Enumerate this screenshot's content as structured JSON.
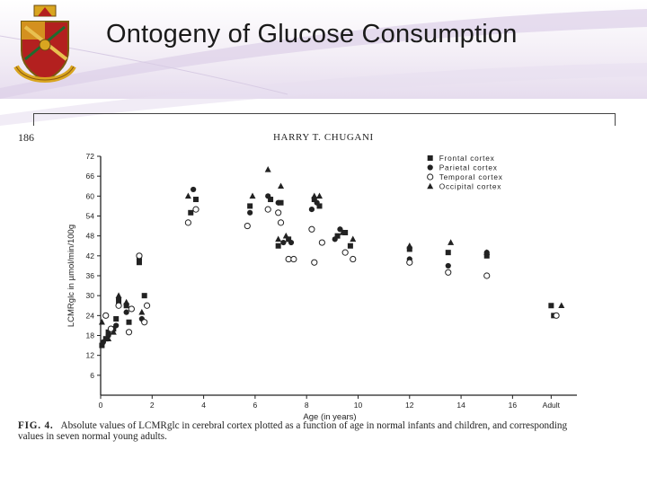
{
  "slide": {
    "title": "Ontogeny of Glucose Consumption",
    "colors": {
      "background_tint": "#e6dcee",
      "swoosh": "#cfc0dc",
      "crest_red": "#b3201f",
      "crest_gold": "#d9a520"
    }
  },
  "scan": {
    "page_number": "186",
    "running_head": "HARRY T. CHUGANI",
    "caption_fig": "FIG. 4.",
    "caption_line1": "Absolute values of LCMRglc in cerebral cortex plotted as a function of age in normal infants and children, and corresponding",
    "caption_line2": "values in seven normal young adults."
  },
  "chart_data": {
    "type": "scatter",
    "xlabel": "Age (in years)",
    "ylabel": "LCMRglc in µmol/min/100g",
    "xlim": [
      0,
      18.5
    ],
    "ylim": [
      0,
      72
    ],
    "xticks": [
      0,
      2,
      4,
      6,
      8,
      10,
      12,
      14,
      16
    ],
    "xtick_labels": [
      "0",
      "2",
      "4",
      "6",
      "8",
      "10",
      "12",
      "14",
      "16"
    ],
    "adult_label": "Adult",
    "adult_position": 17.5,
    "yticks": [
      6,
      12,
      18,
      24,
      30,
      36,
      42,
      48,
      54,
      60,
      66,
      72
    ],
    "ytick_labels": [
      "6",
      "12",
      "18",
      "24",
      "30",
      "36",
      "42",
      "48",
      "54",
      "60",
      "66",
      "72"
    ],
    "grid": false,
    "legend_position": "top-right",
    "series": [
      {
        "name": "Frontal cortex",
        "marker": "square",
        "points": [
          [
            0.05,
            15
          ],
          [
            0.2,
            17
          ],
          [
            0.3,
            19
          ],
          [
            0.5,
            20
          ],
          [
            0.6,
            23
          ],
          [
            0.7,
            28
          ],
          [
            1.1,
            22
          ],
          [
            1.0,
            27
          ],
          [
            1.5,
            40
          ],
          [
            1.7,
            30
          ],
          [
            3.5,
            55
          ],
          [
            3.7,
            59
          ],
          [
            5.8,
            57
          ],
          [
            6.6,
            59
          ],
          [
            7.0,
            58
          ],
          [
            6.9,
            45
          ],
          [
            7.3,
            47
          ],
          [
            8.3,
            59
          ],
          [
            8.5,
            57
          ],
          [
            9.2,
            48
          ],
          [
            9.5,
            49
          ],
          [
            9.7,
            45
          ],
          [
            12.0,
            44
          ],
          [
            13.5,
            43
          ],
          [
            15.0,
            42
          ],
          [
            17.5,
            27
          ],
          [
            17.6,
            24
          ]
        ]
      },
      {
        "name": "Parietal cortex",
        "marker": "circle-filled",
        "points": [
          [
            0.1,
            16
          ],
          [
            0.3,
            18
          ],
          [
            0.6,
            21
          ],
          [
            0.7,
            29
          ],
          [
            1.0,
            25
          ],
          [
            1.5,
            41
          ],
          [
            1.6,
            23
          ],
          [
            3.6,
            62
          ],
          [
            5.8,
            55
          ],
          [
            6.5,
            60
          ],
          [
            6.9,
            58
          ],
          [
            7.1,
            46
          ],
          [
            7.4,
            46
          ],
          [
            8.2,
            56
          ],
          [
            8.4,
            58
          ],
          [
            9.1,
            47
          ],
          [
            9.3,
            50
          ],
          [
            12.0,
            41
          ],
          [
            13.5,
            39
          ],
          [
            15.0,
            43
          ]
        ]
      },
      {
        "name": "Temporal cortex",
        "marker": "circle-open",
        "points": [
          [
            0.2,
            24
          ],
          [
            0.4,
            20
          ],
          [
            0.7,
            27
          ],
          [
            1.1,
            19
          ],
          [
            1.2,
            26
          ],
          [
            1.5,
            42
          ],
          [
            1.7,
            22
          ],
          [
            1.8,
            27
          ],
          [
            3.4,
            52
          ],
          [
            3.7,
            56
          ],
          [
            5.7,
            51
          ],
          [
            6.5,
            56
          ],
          [
            6.9,
            55
          ],
          [
            7.0,
            52
          ],
          [
            7.3,
            41
          ],
          [
            7.5,
            41
          ],
          [
            8.2,
            50
          ],
          [
            8.3,
            40
          ],
          [
            8.6,
            46
          ],
          [
            9.5,
            43
          ],
          [
            9.8,
            41
          ],
          [
            12.0,
            40
          ],
          [
            13.5,
            37
          ],
          [
            15.0,
            36
          ],
          [
            17.7,
            24
          ]
        ]
      },
      {
        "name": "Occipital cortex",
        "marker": "triangle",
        "points": [
          [
            0.05,
            22
          ],
          [
            0.3,
            17
          ],
          [
            0.5,
            19
          ],
          [
            0.7,
            30
          ],
          [
            1.0,
            28
          ],
          [
            1.6,
            25
          ],
          [
            3.4,
            60
          ],
          [
            5.9,
            60
          ],
          [
            6.5,
            68
          ],
          [
            7.0,
            63
          ],
          [
            6.9,
            47
          ],
          [
            7.2,
            48
          ],
          [
            8.3,
            60
          ],
          [
            8.5,
            60
          ],
          [
            9.4,
            49
          ],
          [
            9.8,
            47
          ],
          [
            12.0,
            45
          ],
          [
            13.6,
            46
          ],
          [
            15.0,
            43
          ],
          [
            17.9,
            27
          ]
        ]
      }
    ]
  }
}
